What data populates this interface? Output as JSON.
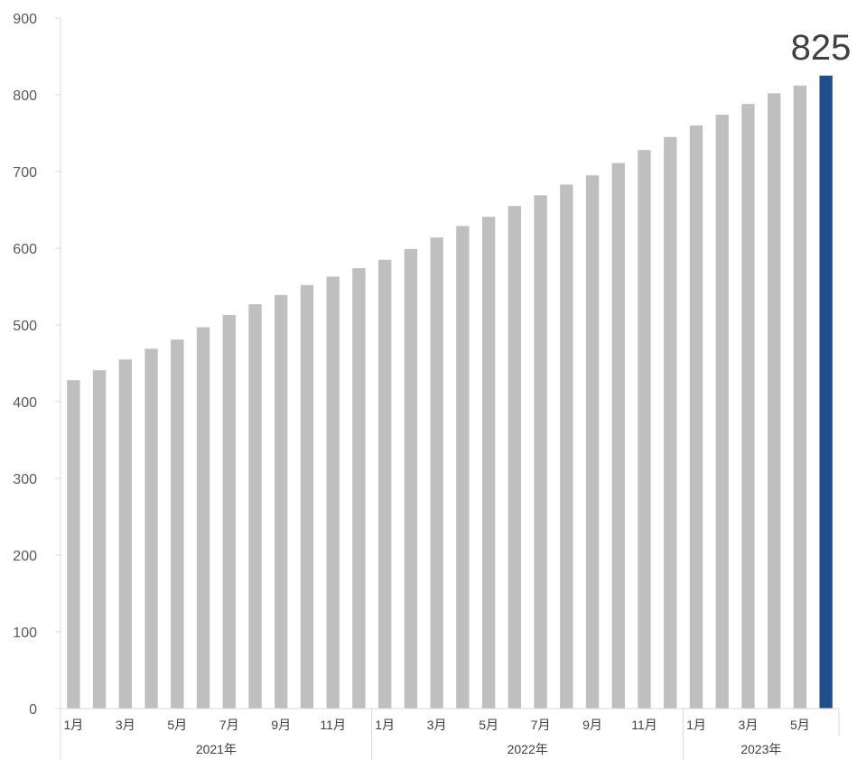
{
  "chart_data": {
    "type": "bar",
    "title": "",
    "xlabel": "",
    "ylabel": "",
    "ylim": [
      0,
      900
    ],
    "yticks": [
      0,
      100,
      200,
      300,
      400,
      500,
      600,
      700,
      800,
      900
    ],
    "grid": false,
    "legend": "none",
    "colors": {
      "default_bar": "#bfbfbf",
      "highlight_bar": "#1f4e8c"
    },
    "categories": [
      "2021-01",
      "2021-02",
      "2021-03",
      "2021-04",
      "2021-05",
      "2021-06",
      "2021-07",
      "2021-08",
      "2021-09",
      "2021-10",
      "2021-11",
      "2021-12",
      "2022-01",
      "2022-02",
      "2022-03",
      "2022-04",
      "2022-05",
      "2022-06",
      "2022-07",
      "2022-08",
      "2022-09",
      "2022-10",
      "2022-11",
      "2022-12",
      "2023-01",
      "2023-02",
      "2023-03",
      "2023-04",
      "2023-05",
      "2023-06"
    ],
    "values": [
      428,
      441,
      455,
      469,
      481,
      497,
      513,
      527,
      539,
      552,
      563,
      574,
      585,
      599,
      614,
      629,
      641,
      655,
      669,
      683,
      695,
      711,
      728,
      745,
      760,
      774,
      788,
      802,
      812,
      825
    ],
    "highlight_index": 29,
    "data_labels": [
      {
        "index": 29,
        "text": "825"
      }
    ],
    "month_tick_labels": [
      "1月",
      "",
      "3月",
      "",
      "5月",
      "",
      "7月",
      "",
      "9月",
      "",
      "11月",
      "",
      "1月",
      "",
      "3月",
      "",
      "5月",
      "",
      "7月",
      "",
      "9月",
      "",
      "11月",
      "",
      "1月",
      "",
      "3月",
      "",
      "5月",
      ""
    ],
    "year_groups": [
      {
        "label": "2021年",
        "start": 0,
        "end": 11
      },
      {
        "label": "2022年",
        "start": 12,
        "end": 23
      },
      {
        "label": "2023年",
        "start": 24,
        "end": 29
      }
    ]
  }
}
